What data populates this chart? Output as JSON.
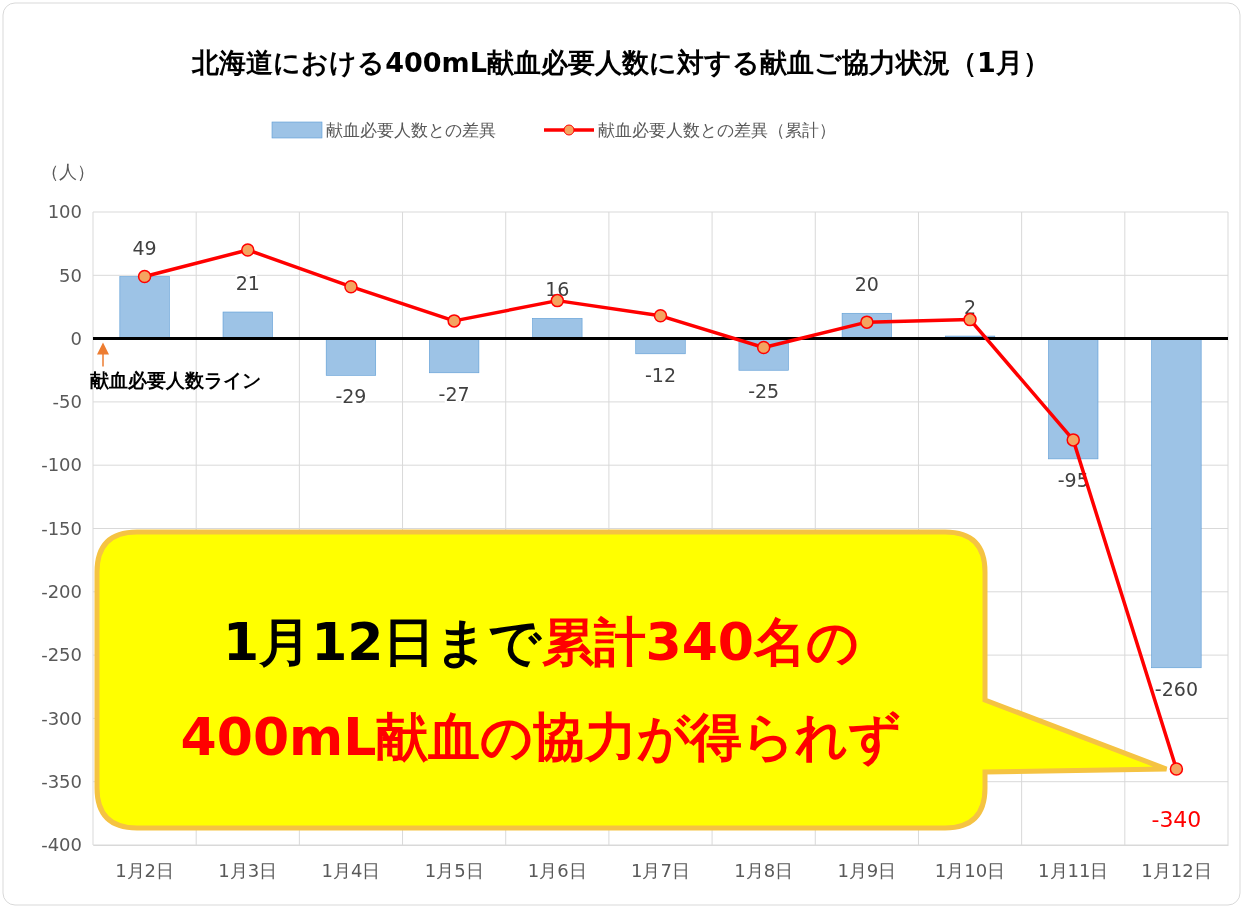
{
  "chart_data": {
    "type": "bar",
    "title": "北海道における400mL献血必要人数に対する献血ご協力状況（1月）",
    "ylabel": "（人）",
    "categories": [
      "1月2日",
      "1月3日",
      "1月4日",
      "1月5日",
      "1月6日",
      "1月7日",
      "1月8日",
      "1月9日",
      "1月10日",
      "1月11日",
      "1月12日"
    ],
    "series": [
      {
        "name": "献血必要人数との差異",
        "color": "#9dc3e6",
        "values": [
          49,
          21,
          -29,
          -27,
          16,
          -12,
          -25,
          20,
          2,
          -95,
          -260
        ],
        "value_labels": [
          "49",
          "21",
          "-29",
          "-27",
          "16",
          "-12",
          "-25",
          "20",
          "2",
          "-95",
          "-260"
        ]
      },
      {
        "name": "献血必要人数との差異（累計）",
        "type": "line",
        "color": "#ff0000",
        "values": [
          49,
          70,
          41,
          14,
          30,
          18,
          -7,
          13,
          15,
          -80,
          -340
        ],
        "value_labels": [
          null,
          null,
          null,
          null,
          null,
          null,
          null,
          null,
          null,
          null,
          "-340"
        ]
      }
    ],
    "ylim": [
      -400,
      100
    ],
    "yticks": [
      -400,
      -350,
      -300,
      -250,
      -200,
      -150,
      -100,
      -50,
      0,
      50,
      100
    ],
    "grid": true,
    "legend": "top",
    "marker": "circle",
    "line_style": "solid",
    "ref_lines": [
      {
        "axis": "y",
        "value": 0,
        "label": "献血必要人数ライン",
        "color": "#000000"
      }
    ],
    "annotations": [
      "1月12日まで",
      "累計340名の\n400mL献血の協力が得られず"
    ]
  }
}
